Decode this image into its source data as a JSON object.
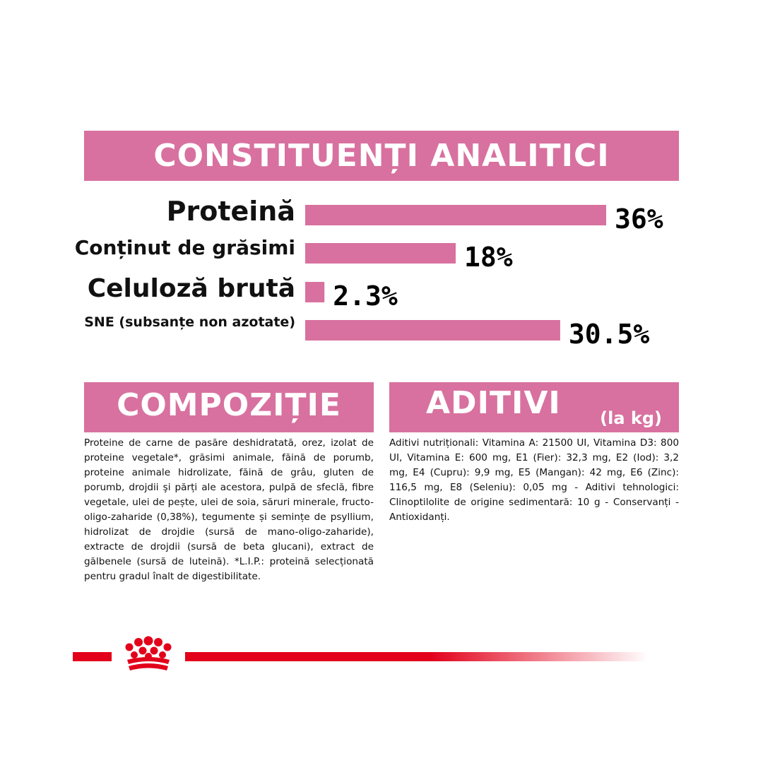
{
  "colors": {
    "accent": "#d8719f",
    "brand_red": "#e2001a"
  },
  "analitic": {
    "title": "CONSTITUENȚI ANALITICI"
  },
  "chart_data": {
    "type": "bar",
    "orientation": "horizontal",
    "categories": [
      "Proteină",
      "Conținut de grăsimi",
      "Celuloză brută",
      "SNE (subsanțe non azotate)"
    ],
    "values": [
      36,
      18,
      2.3,
      30.5
    ],
    "value_labels": [
      "36%",
      "18%",
      "2.3%",
      "30.5%"
    ],
    "unit": "%",
    "title": "CONSTITUENȚI ANALITICI",
    "xlabel": "",
    "ylabel": "",
    "xlim": [
      0,
      36
    ],
    "grid": false,
    "legend": "none"
  },
  "compozitie": {
    "title": "COMPOZIȚIE",
    "text": "Proteine de carne de pasăre deshidratată, orez, izolat de proteine vegetale*, grăsimi animale, făină de porumb, proteine animale hidrolizate, făină de grâu, gluten de porumb, drojdii şi părți ale acestora, pulpă de sfeclă, fibre vegetale, ulei de pește, ulei de soia, săruri minerale, fructo-oligo-zaharide (0,38%), tegumente și semințe de psyllium, hidrolizat de drojdie (sursă de mano-oligo-zaharide), extracte de drojdii (sursă de beta glucani), extract de gălbenele (sursă de luteină). *L.I.P.: proteină selecționată pentru gradul înalt de digestibilitate."
  },
  "aditivi": {
    "title": "ADITIVI",
    "subtitle": "(la kg)",
    "text": "Aditivi nutriționali: Vitamina A: 21500 UI, Vitamina D3: 800 UI, Vitamina E: 600 mg, E1 (Fier): 32,3 mg, E2 (Iod): 3,2 mg, E4 (Cupru): 9,9 mg, E5 (Mangan): 42 mg, E6 (Zinc): 116,5 mg, E8 (Seleniu): 0,05 mg - Aditivi tehnologici: Clinoptilolite de origine sedimentară: 10 g - Conservanți - Antioxidanți."
  },
  "footer": {
    "logo_icon": "royal-canin-crown-icon"
  }
}
